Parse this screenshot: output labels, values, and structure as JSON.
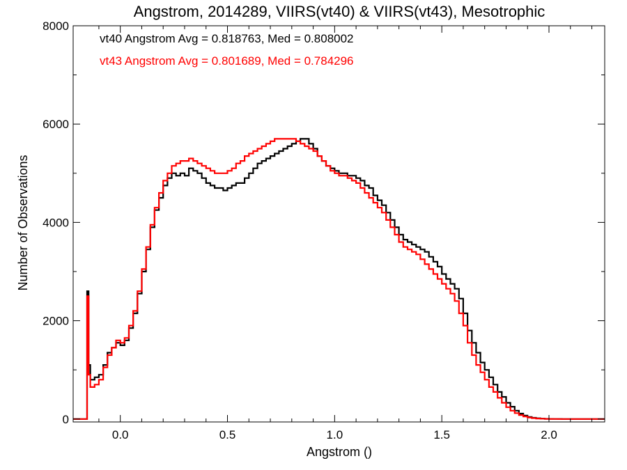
{
  "chart_data": {
    "type": "line",
    "title": "Angstrom, 2014289, VIIRS(vt40) & VIIRS(vt43), Mesotrophic",
    "xlabel": "Angstrom ()",
    "ylabel": "Number of Observations",
    "xlim": [
      -0.22,
      2.26
    ],
    "ylim": [
      -60,
      8000
    ],
    "x_ticks": [
      0.0,
      0.5,
      1.0,
      1.5,
      2.0
    ],
    "x_tick_labels": [
      "0.0",
      "0.5",
      "1.0",
      "1.5",
      "2.0"
    ],
    "y_ticks": [
      0,
      2000,
      4000,
      6000,
      8000
    ],
    "y_tick_labels": [
      "0",
      "2000",
      "4000",
      "6000",
      "8000"
    ],
    "grid": false,
    "annotations": [
      {
        "text": "vt40 Angstrom Avg = 0.818763, Med = 0.808002",
        "color": "#000000"
      },
      {
        "text": "vt43 Angstrom Avg = 0.801689, Med = 0.784296",
        "color": "#ff0000"
      }
    ],
    "series": [
      {
        "color": "#000000",
        "points": [
          [
            -0.22,
            0
          ],
          [
            -0.17,
            0
          ],
          [
            -0.16,
            0
          ],
          [
            -0.155,
            2600
          ],
          [
            -0.148,
            1100
          ],
          [
            -0.14,
            800
          ],
          [
            -0.12,
            850
          ],
          [
            -0.1,
            900
          ],
          [
            -0.08,
            1100
          ],
          [
            -0.06,
            1350
          ],
          [
            -0.04,
            1450
          ],
          [
            -0.02,
            1550
          ],
          [
            0.0,
            1500
          ],
          [
            0.02,
            1600
          ],
          [
            0.04,
            1850
          ],
          [
            0.06,
            2150
          ],
          [
            0.08,
            2550
          ],
          [
            0.1,
            3000
          ],
          [
            0.12,
            3450
          ],
          [
            0.14,
            3900
          ],
          [
            0.16,
            4250
          ],
          [
            0.18,
            4500
          ],
          [
            0.2,
            4750
          ],
          [
            0.22,
            4900
          ],
          [
            0.24,
            5000
          ],
          [
            0.26,
            4950
          ],
          [
            0.28,
            5000
          ],
          [
            0.3,
            4950
          ],
          [
            0.32,
            5100
          ],
          [
            0.34,
            5050
          ],
          [
            0.36,
            5000
          ],
          [
            0.38,
            4900
          ],
          [
            0.4,
            4800
          ],
          [
            0.42,
            4750
          ],
          [
            0.44,
            4700
          ],
          [
            0.46,
            4700
          ],
          [
            0.48,
            4650
          ],
          [
            0.5,
            4700
          ],
          [
            0.52,
            4750
          ],
          [
            0.54,
            4800
          ],
          [
            0.56,
            4800
          ],
          [
            0.58,
            4900
          ],
          [
            0.6,
            5000
          ],
          [
            0.62,
            5100
          ],
          [
            0.64,
            5200
          ],
          [
            0.66,
            5250
          ],
          [
            0.68,
            5300
          ],
          [
            0.7,
            5350
          ],
          [
            0.72,
            5400
          ],
          [
            0.74,
            5450
          ],
          [
            0.76,
            5500
          ],
          [
            0.78,
            5550
          ],
          [
            0.8,
            5600
          ],
          [
            0.82,
            5650
          ],
          [
            0.84,
            5700
          ],
          [
            0.86,
            5700
          ],
          [
            0.88,
            5600
          ],
          [
            0.9,
            5500
          ],
          [
            0.92,
            5350
          ],
          [
            0.94,
            5250
          ],
          [
            0.96,
            5150
          ],
          [
            0.98,
            5100
          ],
          [
            1.0,
            5050
          ],
          [
            1.02,
            5000
          ],
          [
            1.04,
            5000
          ],
          [
            1.06,
            4950
          ],
          [
            1.08,
            4950
          ],
          [
            1.1,
            4900
          ],
          [
            1.12,
            4850
          ],
          [
            1.14,
            4750
          ],
          [
            1.16,
            4700
          ],
          [
            1.18,
            4550
          ],
          [
            1.2,
            4450
          ],
          [
            1.22,
            4350
          ],
          [
            1.24,
            4200
          ],
          [
            1.26,
            4050
          ],
          [
            1.28,
            3900
          ],
          [
            1.3,
            3750
          ],
          [
            1.32,
            3650
          ],
          [
            1.34,
            3600
          ],
          [
            1.36,
            3550
          ],
          [
            1.38,
            3500
          ],
          [
            1.4,
            3450
          ],
          [
            1.42,
            3400
          ],
          [
            1.44,
            3300
          ],
          [
            1.46,
            3200
          ],
          [
            1.48,
            3100
          ],
          [
            1.5,
            2950
          ],
          [
            1.52,
            2850
          ],
          [
            1.54,
            2750
          ],
          [
            1.56,
            2650
          ],
          [
            1.58,
            2450
          ],
          [
            1.6,
            2150
          ],
          [
            1.62,
            1800
          ],
          [
            1.64,
            1550
          ],
          [
            1.66,
            1350
          ],
          [
            1.68,
            1150
          ],
          [
            1.7,
            1000
          ],
          [
            1.72,
            850
          ],
          [
            1.74,
            700
          ],
          [
            1.76,
            550
          ],
          [
            1.78,
            450
          ],
          [
            1.8,
            330
          ],
          [
            1.82,
            250
          ],
          [
            1.84,
            170
          ],
          [
            1.86,
            110
          ],
          [
            1.88,
            70
          ],
          [
            1.9,
            40
          ],
          [
            1.92,
            25
          ],
          [
            1.94,
            15
          ],
          [
            1.96,
            8
          ],
          [
            1.98,
            4
          ],
          [
            2.0,
            2
          ],
          [
            2.02,
            1
          ],
          [
            2.06,
            0
          ],
          [
            2.26,
            0
          ]
        ]
      },
      {
        "color": "#ff0000",
        "points": [
          [
            -0.22,
            0
          ],
          [
            -0.17,
            0
          ],
          [
            -0.16,
            0
          ],
          [
            -0.155,
            2500
          ],
          [
            -0.148,
            900
          ],
          [
            -0.14,
            650
          ],
          [
            -0.12,
            700
          ],
          [
            -0.1,
            800
          ],
          [
            -0.08,
            1050
          ],
          [
            -0.06,
            1300
          ],
          [
            -0.04,
            1450
          ],
          [
            -0.02,
            1600
          ],
          [
            0.0,
            1550
          ],
          [
            0.02,
            1650
          ],
          [
            0.04,
            1900
          ],
          [
            0.06,
            2200
          ],
          [
            0.08,
            2600
          ],
          [
            0.1,
            3050
          ],
          [
            0.12,
            3500
          ],
          [
            0.14,
            3950
          ],
          [
            0.16,
            4300
          ],
          [
            0.18,
            4600
          ],
          [
            0.2,
            4850
          ],
          [
            0.22,
            5000
          ],
          [
            0.24,
            5150
          ],
          [
            0.26,
            5200
          ],
          [
            0.28,
            5250
          ],
          [
            0.3,
            5250
          ],
          [
            0.32,
            5300
          ],
          [
            0.34,
            5250
          ],
          [
            0.36,
            5200
          ],
          [
            0.38,
            5150
          ],
          [
            0.4,
            5100
          ],
          [
            0.42,
            5050
          ],
          [
            0.44,
            5000
          ],
          [
            0.46,
            5000
          ],
          [
            0.48,
            5000
          ],
          [
            0.5,
            5050
          ],
          [
            0.52,
            5100
          ],
          [
            0.54,
            5200
          ],
          [
            0.56,
            5250
          ],
          [
            0.58,
            5350
          ],
          [
            0.6,
            5400
          ],
          [
            0.62,
            5450
          ],
          [
            0.64,
            5500
          ],
          [
            0.66,
            5550
          ],
          [
            0.68,
            5600
          ],
          [
            0.7,
            5650
          ],
          [
            0.72,
            5700
          ],
          [
            0.74,
            5700
          ],
          [
            0.76,
            5700
          ],
          [
            0.78,
            5700
          ],
          [
            0.8,
            5700
          ],
          [
            0.82,
            5650
          ],
          [
            0.84,
            5600
          ],
          [
            0.86,
            5550
          ],
          [
            0.88,
            5500
          ],
          [
            0.9,
            5450
          ],
          [
            0.92,
            5350
          ],
          [
            0.94,
            5250
          ],
          [
            0.96,
            5150
          ],
          [
            0.98,
            5050
          ],
          [
            1.0,
            5000
          ],
          [
            1.02,
            4950
          ],
          [
            1.04,
            4950
          ],
          [
            1.06,
            4900
          ],
          [
            1.08,
            4850
          ],
          [
            1.1,
            4800
          ],
          [
            1.12,
            4700
          ],
          [
            1.14,
            4600
          ],
          [
            1.16,
            4500
          ],
          [
            1.18,
            4400
          ],
          [
            1.2,
            4300
          ],
          [
            1.22,
            4200
          ],
          [
            1.24,
            4050
          ],
          [
            1.26,
            3900
          ],
          [
            1.28,
            3750
          ],
          [
            1.3,
            3600
          ],
          [
            1.32,
            3500
          ],
          [
            1.34,
            3450
          ],
          [
            1.36,
            3400
          ],
          [
            1.38,
            3350
          ],
          [
            1.4,
            3250
          ],
          [
            1.42,
            3150
          ],
          [
            1.44,
            3050
          ],
          [
            1.46,
            2950
          ],
          [
            1.48,
            2850
          ],
          [
            1.5,
            2750
          ],
          [
            1.52,
            2650
          ],
          [
            1.54,
            2550
          ],
          [
            1.56,
            2400
          ],
          [
            1.58,
            2150
          ],
          [
            1.6,
            1900
          ],
          [
            1.62,
            1550
          ],
          [
            1.64,
            1300
          ],
          [
            1.66,
            1100
          ],
          [
            1.68,
            950
          ],
          [
            1.7,
            800
          ],
          [
            1.72,
            650
          ],
          [
            1.74,
            550
          ],
          [
            1.76,
            430
          ],
          [
            1.78,
            330
          ],
          [
            1.8,
            240
          ],
          [
            1.82,
            170
          ],
          [
            1.84,
            120
          ],
          [
            1.86,
            80
          ],
          [
            1.88,
            50
          ],
          [
            1.9,
            30
          ],
          [
            1.92,
            18
          ],
          [
            1.94,
            10
          ],
          [
            1.96,
            6
          ],
          [
            1.98,
            3
          ],
          [
            2.0,
            1
          ],
          [
            2.04,
            0
          ],
          [
            2.26,
            0
          ]
        ]
      }
    ]
  }
}
